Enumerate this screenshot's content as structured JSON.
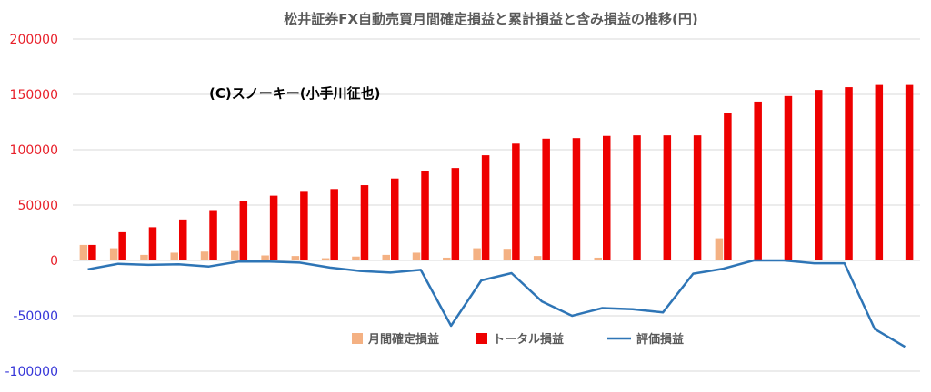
{
  "chart_data": {
    "type": "bar",
    "title": "松井証券FX自動売買月間確定損益と累計損益と含み損益の推移(円)",
    "watermark": "(C)スノーキー(小手川征也)",
    "ylim": [
      -100000,
      200000
    ],
    "yticks": [
      "200000",
      "150000",
      "100000",
      "50000",
      "0",
      "-50000",
      "-100000"
    ],
    "ytick_values": [
      200000,
      150000,
      100000,
      50000,
      0,
      -50000,
      -100000
    ],
    "grid": true,
    "legend_position": "bottom-center",
    "n_categories": 28,
    "series": [
      {
        "name": "月間確定損益",
        "type": "bar",
        "color": "#f4b183",
        "values": [
          14000,
          11000,
          5000,
          7000,
          8000,
          8500,
          4500,
          4000,
          2000,
          3500,
          5000,
          7000,
          2500,
          11000,
          10500,
          4000,
          0,
          2500,
          0,
          0,
          0,
          20000,
          0,
          0,
          0,
          0,
          0,
          0
        ]
      },
      {
        "name": "トータル損益",
        "type": "bar",
        "color": "#ee0000",
        "values": [
          14000,
          25500,
          30000,
          37000,
          45500,
          54000,
          58500,
          62000,
          64500,
          68000,
          74000,
          81000,
          83500,
          95000,
          105500,
          110000,
          110500,
          112500,
          113000,
          113000,
          113000,
          133000,
          143500,
          148500,
          154000,
          156500,
          158500,
          158500
        ]
      },
      {
        "name": "評価損益",
        "type": "line",
        "color": "#2e75b6",
        "values": [
          -8000,
          -3000,
          -4000,
          -3500,
          -5500,
          -1000,
          -1000,
          -2000,
          -6500,
          -9500,
          -11000,
          -8500,
          -59000,
          -18000,
          -11500,
          -37000,
          -50000,
          -43000,
          -44000,
          -47000,
          -12000,
          -7500,
          0,
          0,
          -2500,
          -2500,
          -62000,
          -78000
        ]
      }
    ]
  }
}
